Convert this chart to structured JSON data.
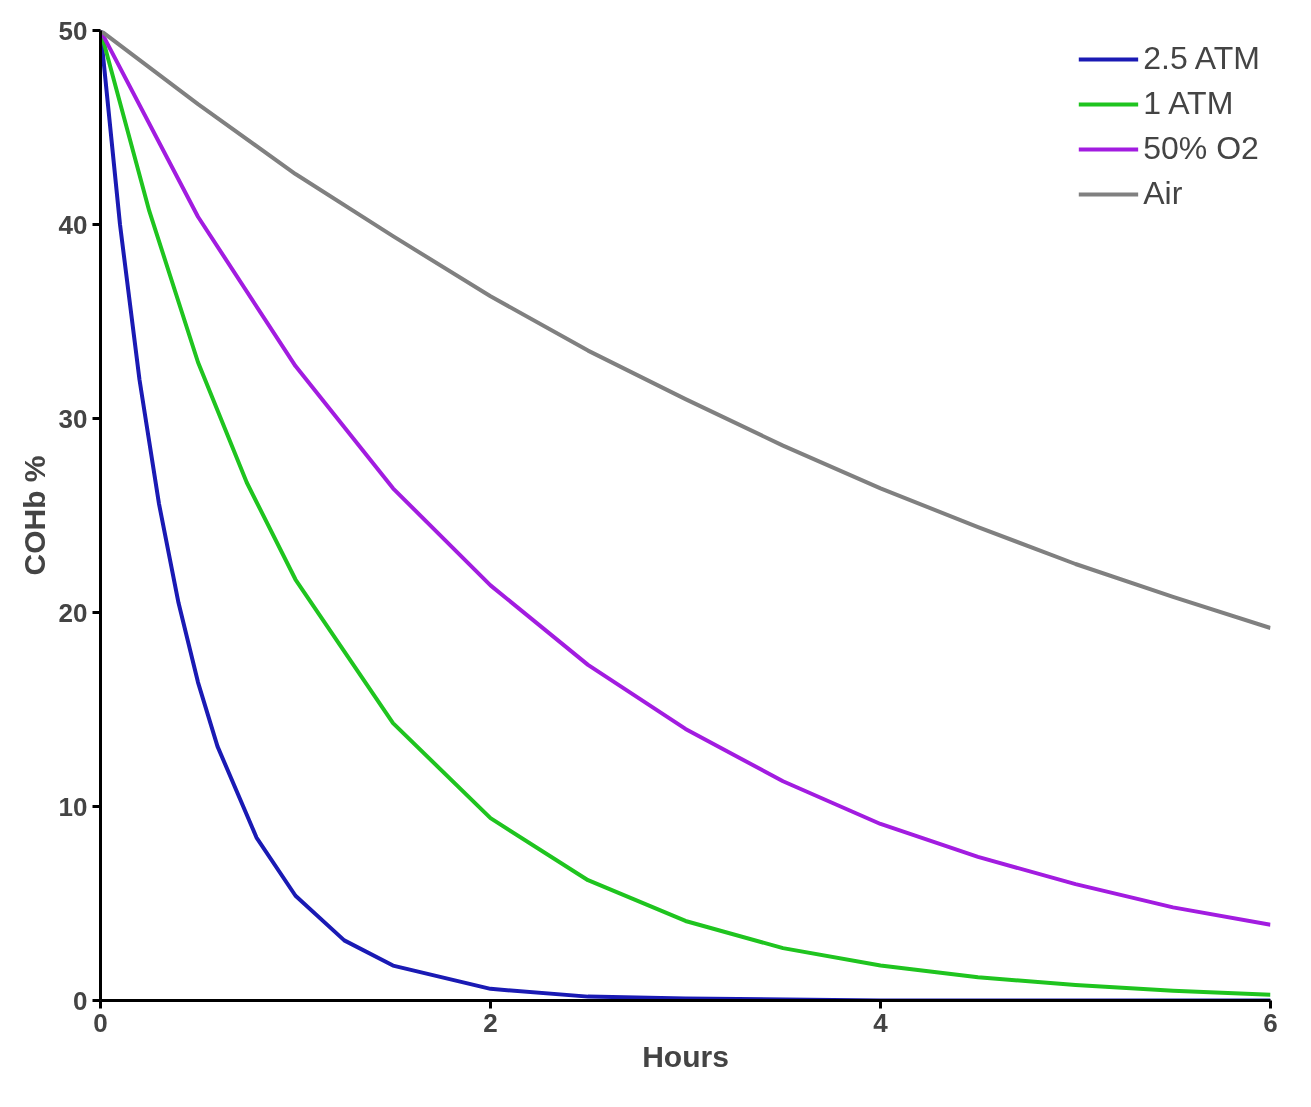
{
  "chart_data": {
    "type": "line",
    "xlabel": "Hours",
    "ylabel": "COHb %",
    "xlim": [
      0,
      6
    ],
    "ylim": [
      0,
      50
    ],
    "xticks": [
      0,
      2,
      4,
      6
    ],
    "yticks": [
      0,
      10,
      20,
      30,
      40,
      50
    ],
    "grid": false,
    "legend": "top right",
    "marker": "none",
    "line_style": "solid",
    "series": [
      {
        "name": "2.5 ATM",
        "color": "#1a1ab4",
        "x": [
          0,
          0.1,
          0.2,
          0.3,
          0.4,
          0.5,
          0.6,
          0.8,
          1,
          1.25,
          1.5,
          2,
          2.5,
          3,
          4,
          5,
          6
        ],
        "values": [
          50,
          40,
          32,
          25.6,
          20.5,
          16.4,
          13.1,
          8.4,
          5.4,
          3.1,
          1.8,
          0.6,
          0.2,
          0.1,
          0,
          0,
          0
        ]
      },
      {
        "name": "1 ATM",
        "color": "#1fc41f",
        "x": [
          0,
          0.25,
          0.5,
          0.75,
          1,
          1.5,
          2,
          2.5,
          3,
          3.5,
          4,
          4.5,
          5,
          5.5,
          6
        ],
        "values": [
          50,
          40.7,
          32.9,
          26.7,
          21.7,
          14.3,
          9.4,
          6.2,
          4.1,
          2.7,
          1.8,
          1.2,
          0.8,
          0.5,
          0.3
        ]
      },
      {
        "name": "50% O2",
        "color": "#a21ce0",
        "x": [
          0,
          0.5,
          1,
          1.5,
          2,
          2.5,
          3,
          3.5,
          4,
          4.5,
          5,
          5.5,
          6
        ],
        "values": [
          50,
          40.4,
          32.7,
          26.4,
          21.4,
          17.3,
          14.0,
          11.3,
          9.1,
          7.4,
          6.0,
          4.8,
          3.9
        ]
      },
      {
        "name": "Air",
        "color": "#808080",
        "x": [
          0,
          0.5,
          1,
          1.5,
          2,
          2.5,
          3,
          3.5,
          4,
          4.5,
          5,
          5.5,
          6
        ],
        "values": [
          50,
          46.2,
          42.6,
          39.4,
          36.3,
          33.5,
          31.0,
          28.6,
          26.4,
          24.4,
          22.5,
          20.8,
          19.2
        ]
      }
    ]
  }
}
